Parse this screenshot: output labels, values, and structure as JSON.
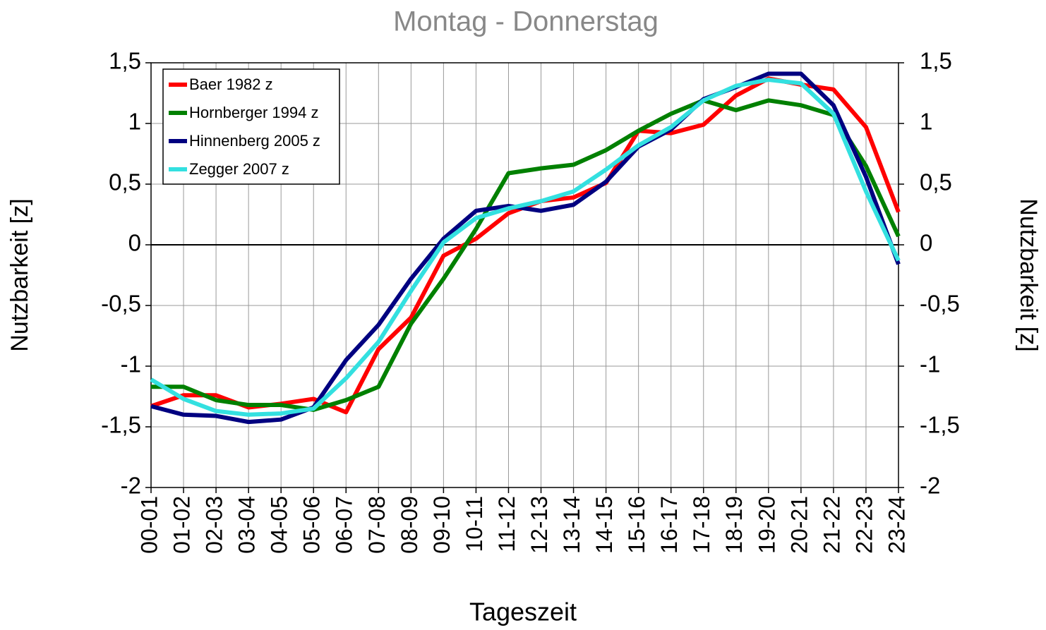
{
  "chart_data": {
    "type": "line",
    "title": "Montag - Donnerstag",
    "xlabel": "Tageszeit",
    "ylabel": "Nutzbarkeit [z]",
    "y2label": "Nutzbarkeit  [z]",
    "categories": [
      "00-01",
      "01-02",
      "02-03",
      "03-04",
      "04-05",
      "05-06",
      "06-07",
      "07-08",
      "08-09",
      "09-10",
      "10-11",
      "11-12",
      "12-13",
      "13-14",
      "14-15",
      "15-16",
      "16-17",
      "17-18",
      "18-19",
      "19-20",
      "20-21",
      "21-22",
      "22-23",
      "23-24"
    ],
    "series": [
      {
        "name": "Baer 1982 z",
        "color": "#ff0000",
        "values": [
          -1.33,
          -1.24,
          -1.24,
          -1.34,
          -1.31,
          -1.27,
          -1.38,
          -0.86,
          -0.6,
          -0.09,
          0.05,
          0.26,
          0.36,
          0.39,
          0.51,
          0.94,
          0.92,
          0.99,
          1.23,
          1.37,
          1.32,
          1.28,
          0.97,
          0.27
        ]
      },
      {
        "name": "Hornberger 1994 z",
        "color": "#008000",
        "values": [
          -1.17,
          -1.17,
          -1.28,
          -1.32,
          -1.32,
          -1.36,
          -1.28,
          -1.17,
          -0.65,
          -0.28,
          0.13,
          0.59,
          0.63,
          0.66,
          0.78,
          0.94,
          1.08,
          1.19,
          1.11,
          1.19,
          1.15,
          1.07,
          0.65,
          0.07
        ]
      },
      {
        "name": "Hinnenberg 2005 z",
        "color": "#000080",
        "values": [
          -1.33,
          -1.4,
          -1.41,
          -1.46,
          -1.44,
          -1.34,
          -0.95,
          -0.66,
          -0.28,
          0.05,
          0.28,
          0.32,
          0.28,
          0.33,
          0.52,
          0.81,
          0.95,
          1.2,
          1.3,
          1.41,
          1.41,
          1.15,
          0.56,
          -0.16
        ]
      },
      {
        "name": "Zegger 2007 z",
        "color": "#33e0e0",
        "values": [
          -1.11,
          -1.27,
          -1.37,
          -1.4,
          -1.39,
          -1.35,
          -1.1,
          -0.8,
          -0.38,
          0.02,
          0.22,
          0.3,
          0.36,
          0.44,
          0.62,
          0.82,
          0.97,
          1.19,
          1.31,
          1.36,
          1.33,
          1.08,
          0.44,
          -0.13
        ]
      }
    ],
    "ylim": [
      -2,
      1.5
    ],
    "yticks": [
      -2,
      {
        "value": -1.5,
        "label": "-1,5"
      },
      -1,
      {
        "value": -0.5,
        "label": "-0,5"
      },
      0,
      {
        "value": 0.5,
        "label": "0,5"
      },
      1,
      {
        "value": 1.5,
        "label": "1,5"
      }
    ],
    "y2lim": [
      -2,
      1.5
    ],
    "y2ticks": [
      -2,
      {
        "value": -1.5,
        "label": "-1,5"
      },
      -1,
      {
        "value": -0.5,
        "label": "-0,5"
      },
      0,
      {
        "value": 0.5,
        "label": "0,5"
      },
      1,
      {
        "value": 1.5,
        "label": "1,5"
      }
    ],
    "grid": true,
    "legend": "upper left"
  }
}
